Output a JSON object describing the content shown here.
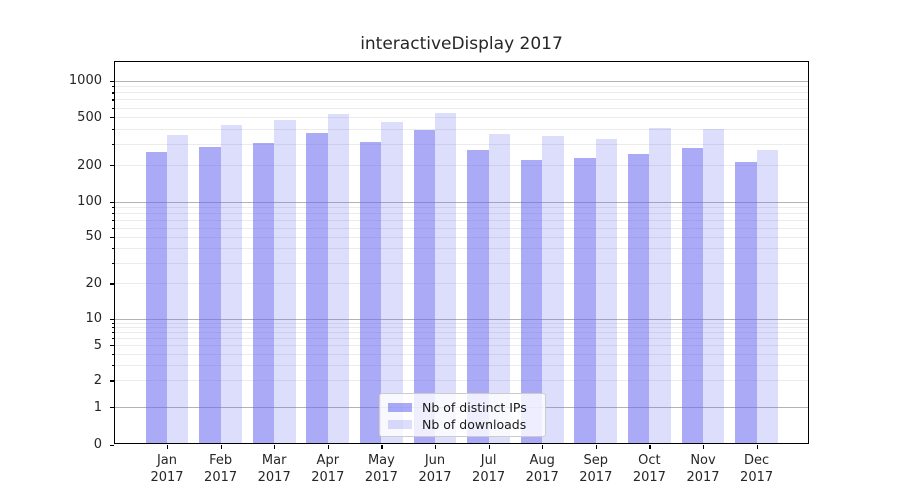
{
  "chart_data": {
    "type": "bar",
    "title": "interactiveDisplay 2017",
    "categories": [
      "Jan 2017",
      "Feb 2017",
      "Mar 2017",
      "Apr 2017",
      "May 2017",
      "Jun 2017",
      "Jul 2017",
      "Aug 2017",
      "Sep 2017",
      "Oct 2017",
      "Nov 2017",
      "Dec 2017"
    ],
    "series": [
      {
        "name": "Nb of distinct IPs",
        "color": "rgba(100,100,240,0.55)",
        "values": [
          258,
          285,
          306,
          370,
          312,
          392,
          266,
          220,
          228,
          250,
          277,
          213
        ]
      },
      {
        "name": "Nb of downloads",
        "color": "rgba(100,100,240,0.22)",
        "values": [
          355,
          430,
          470,
          527,
          456,
          536,
          361,
          350,
          330,
          408,
          396,
          270
        ]
      }
    ],
    "xlabel": "",
    "ylabel": "",
    "yscale": "symlog",
    "ylim": [
      0,
      1450
    ],
    "yticks_labeled": [
      0,
      1,
      2,
      5,
      10,
      20,
      50,
      100,
      200,
      500,
      1000
    ],
    "yticks_minor_unlabeled": [
      3,
      4,
      6,
      7,
      8,
      9,
      30,
      40,
      60,
      70,
      80,
      90,
      300,
      400,
      600,
      700,
      800,
      900
    ],
    "grid": "horizontal log major+minor",
    "legend_position": "lower center"
  },
  "colors": {
    "bar_dark": "rgba(100,100,240,0.55)",
    "bar_light": "rgba(100,100,240,0.22)",
    "grid_major": "#b3b3b3",
    "grid_minor": "#ebebeb",
    "axis": "#000000",
    "text": "#262626"
  }
}
